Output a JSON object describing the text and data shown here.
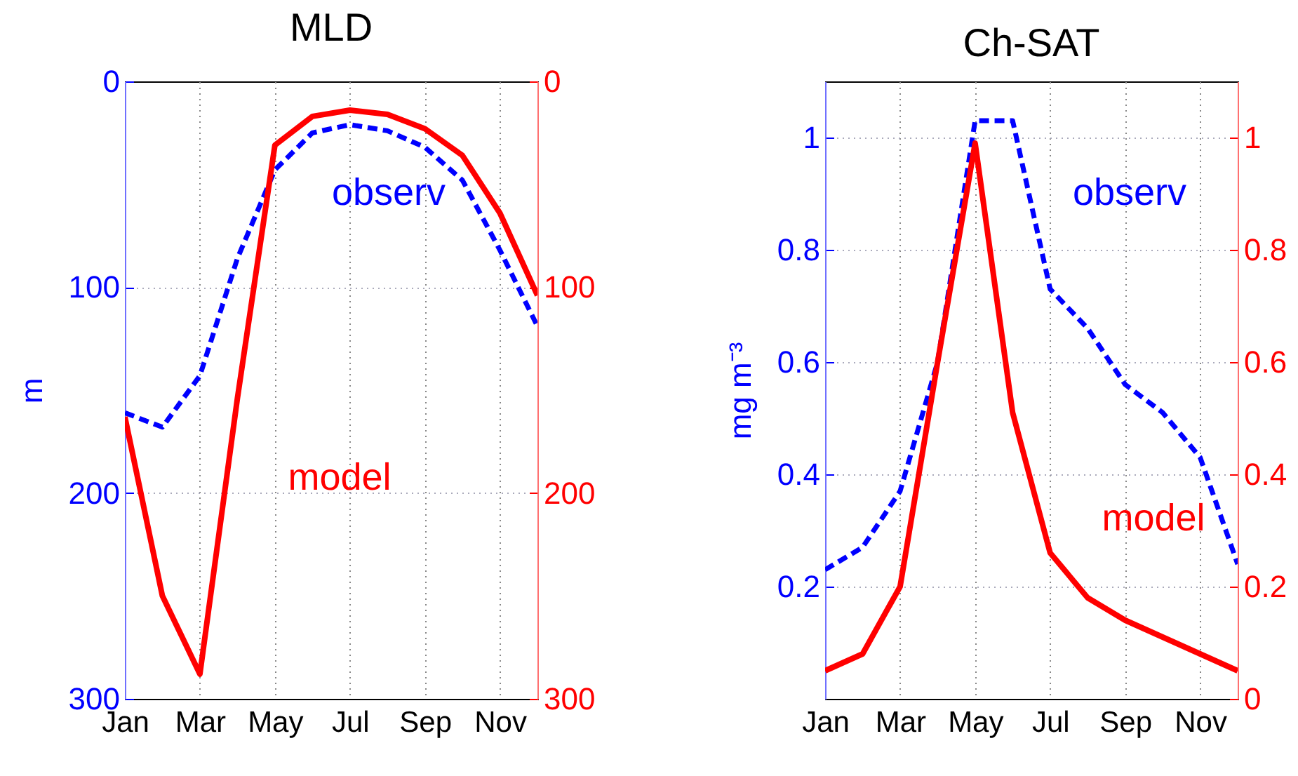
{
  "chart_data": [
    {
      "type": "line",
      "title": "MLD",
      "ylabel": "m",
      "categories": [
        "Jan",
        null,
        "Mar",
        null,
        "May",
        null,
        "Jul",
        null,
        "Sep",
        null,
        "Nov",
        null
      ],
      "ylim": [
        300,
        0
      ],
      "yticks": [
        0,
        100,
        200,
        300
      ],
      "y2lim": [
        300,
        0
      ],
      "y2ticks": [
        0,
        100,
        200,
        300
      ],
      "grid": true,
      "series": [
        {
          "name": "observ",
          "color": "#0000ff",
          "line_style": "dashed",
          "values": [
            161,
            168,
            143,
            86,
            43,
            25,
            21,
            24,
            32,
            48,
            82,
            119
          ]
        },
        {
          "name": "model",
          "color": "#ff0000",
          "line_style": "solid",
          "axis": "y2",
          "values": [
            163,
            250,
            288,
            154,
            31,
            17,
            14,
            16,
            23,
            36,
            64,
            104
          ]
        }
      ]
    },
    {
      "type": "line",
      "title": "Ch-SAT",
      "ylabel": "mg m⁻³",
      "categories": [
        "Jan",
        null,
        "Mar",
        null,
        "May",
        null,
        "Jul",
        null,
        "Sep",
        null,
        "Nov",
        null
      ],
      "ylim": [
        0,
        1.1
      ],
      "yticks": [
        0.2,
        0.4,
        0.6,
        0.8,
        1
      ],
      "y2lim": [
        0,
        1.1
      ],
      "y2ticks": [
        0,
        0.2,
        0.4,
        0.6,
        0.8,
        1
      ],
      "grid": true,
      "series": [
        {
          "name": "observ",
          "color": "#0000ff",
          "line_style": "dashed",
          "values": [
            0.23,
            0.27,
            0.37,
            0.6,
            1.03,
            1.03,
            0.73,
            0.66,
            0.56,
            0.51,
            0.43,
            0.24
          ]
        },
        {
          "name": "model",
          "color": "#ff0000",
          "line_style": "solid",
          "axis": "y2",
          "values": [
            0.05,
            0.08,
            0.2,
            0.6,
            0.99,
            0.51,
            0.26,
            0.18,
            0.14,
            0.11,
            0.08,
            0.05
          ]
        }
      ]
    }
  ]
}
